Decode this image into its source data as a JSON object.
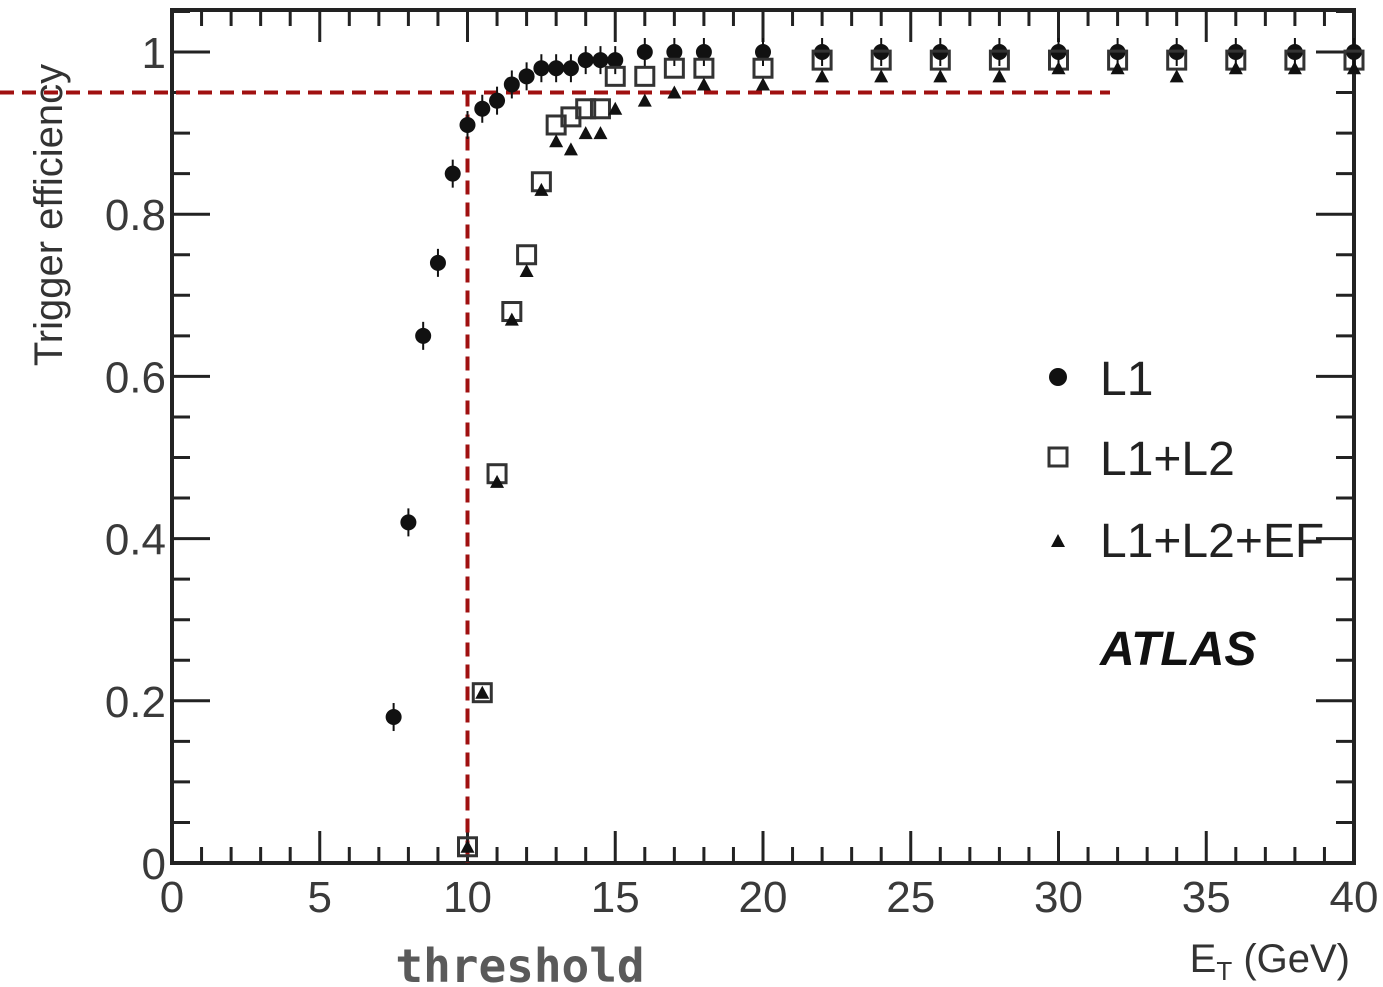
{
  "chart_data": {
    "type": "scatter",
    "title": "",
    "xlabel": "E_T (GeV)",
    "xlabel_main": "E",
    "xlabel_sub": "T",
    "xlabel_unit": " (GeV)",
    "ylabel": "Trigger efficiency",
    "xlim": [
      0,
      40
    ],
    "ylim": [
      0,
      1.0
    ],
    "x_ticks": [
      "0",
      "5",
      "10",
      "15",
      "20",
      "25",
      "30",
      "35",
      "40"
    ],
    "y_ticks": [
      "0",
      "0.2",
      "0.4",
      "0.6",
      "0.8",
      "1"
    ],
    "legend_position": "right",
    "annotation_label": "ATLAS",
    "threshold_label": "threshold",
    "threshold_x": 10,
    "threshold_y": 0.95,
    "guide_color": "#a01010",
    "series": [
      {
        "name": "L1",
        "marker": "circle",
        "x": [
          7.5,
          8.0,
          8.5,
          9.0,
          9.5,
          10.0,
          10.5,
          11.0,
          11.5,
          12.0,
          12.5,
          13.0,
          13.5,
          14.0,
          14.5,
          15.0,
          16.0,
          17.0,
          18.0,
          20.0,
          22.0,
          24.0,
          26.0,
          28.0,
          30.0,
          32.0,
          34.0,
          36.0,
          38.0,
          40.0
        ],
        "y": [
          0.18,
          0.42,
          0.65,
          0.74,
          0.85,
          0.91,
          0.93,
          0.94,
          0.96,
          0.97,
          0.98,
          0.98,
          0.98,
          0.99,
          0.99,
          0.99,
          1.0,
          1.0,
          1.0,
          1.0,
          1.0,
          1.0,
          1.0,
          1.0,
          1.0,
          1.0,
          1.0,
          1.0,
          1.0,
          1.0
        ]
      },
      {
        "name": "L1+L2",
        "marker": "square",
        "x": [
          10.0,
          10.5,
          11.0,
          11.5,
          12.0,
          12.5,
          13.0,
          13.5,
          14.0,
          14.5,
          15.0,
          16.0,
          17.0,
          18.0,
          20.0,
          22.0,
          24.0,
          26.0,
          28.0,
          30.0,
          32.0,
          34.0,
          36.0,
          38.0,
          40.0
        ],
        "y": [
          0.02,
          0.21,
          0.48,
          0.68,
          0.75,
          0.84,
          0.91,
          0.92,
          0.93,
          0.93,
          0.97,
          0.97,
          0.98,
          0.98,
          0.98,
          0.99,
          0.99,
          0.99,
          0.99,
          0.99,
          0.99,
          0.99,
          0.99,
          0.99,
          0.99
        ]
      },
      {
        "name": "L1+L2+EF",
        "marker": "triangle",
        "x": [
          10.0,
          10.5,
          11.0,
          11.5,
          12.0,
          12.5,
          13.0,
          13.5,
          14.0,
          14.5,
          15.0,
          16.0,
          17.0,
          18.0,
          20.0,
          22.0,
          24.0,
          26.0,
          28.0,
          30.0,
          32.0,
          34.0,
          36.0,
          38.0,
          40.0
        ],
        "y": [
          0.02,
          0.21,
          0.47,
          0.67,
          0.73,
          0.83,
          0.89,
          0.88,
          0.9,
          0.9,
          0.93,
          0.94,
          0.95,
          0.96,
          0.96,
          0.97,
          0.97,
          0.97,
          0.97,
          0.98,
          0.98,
          0.97,
          0.98,
          0.98,
          0.98
        ]
      }
    ]
  }
}
